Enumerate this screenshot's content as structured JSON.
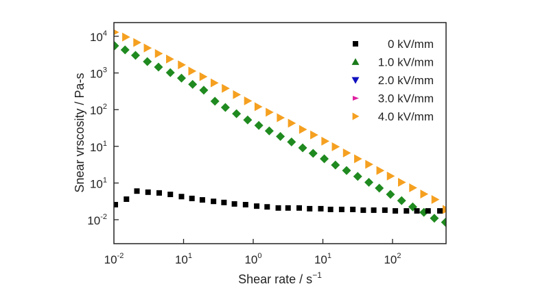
{
  "chart_data": {
    "type": "scatter",
    "title": "",
    "xlabel": "Shear rate / s",
    "xlabel_sup": "−1",
    "ylabel": "Snear vrscosity / Pa-s",
    "x_scale": "log (decades from left axis edge)",
    "y_scale": "log (decades above lowest labeled tick)",
    "xlim": [
      0,
      4.75
    ],
    "ylim": [
      -0.65,
      5.4
    ],
    "x_ticks": [
      {
        "pos": 0,
        "base": "10",
        "exp": "-2"
      },
      {
        "pos": 1,
        "base": "10",
        "exp": "1"
      },
      {
        "pos": 2,
        "base": "10",
        "exp": "0"
      },
      {
        "pos": 3,
        "base": "10",
        "exp": "1"
      },
      {
        "pos": 4,
        "base": "10",
        "exp": "2"
      }
    ],
    "y_ticks": [
      {
        "pos": 0,
        "base": "10",
        "exp": "-2"
      },
      {
        "pos": 1,
        "base": "10",
        "exp": "1"
      },
      {
        "pos": 2,
        "base": "10",
        "exp": "1"
      },
      {
        "pos": 3,
        "base": "10",
        "exp": "2"
      },
      {
        "pos": 4,
        "base": "10",
        "exp": "3"
      },
      {
        "pos": 5,
        "base": "10",
        "exp": "4"
      }
    ],
    "grid": false,
    "legend_position": "top-right",
    "series": [
      {
        "name": "0 kV/mm",
        "marker": "square",
        "color": "#000000",
        "x": [
          0.02,
          0.18,
          0.33,
          0.49,
          0.65,
          0.81,
          0.97,
          1.12,
          1.27,
          1.43,
          1.58,
          1.73,
          1.89,
          2.05,
          2.2,
          2.36,
          2.5,
          2.66,
          2.81,
          2.97,
          3.11,
          3.27,
          3.43,
          3.58,
          3.73,
          3.89,
          4.04,
          4.2,
          4.35,
          4.51,
          4.68
        ],
        "y": [
          0.41,
          0.56,
          0.78,
          0.75,
          0.73,
          0.69,
          0.63,
          0.58,
          0.54,
          0.5,
          0.47,
          0.43,
          0.41,
          0.37,
          0.35,
          0.32,
          0.32,
          0.32,
          0.3,
          0.3,
          0.28,
          0.28,
          0.28,
          0.26,
          0.26,
          0.26,
          0.24,
          0.24,
          0.24,
          0.24,
          0.24
        ]
      },
      {
        "name": "1.0 kV/mm",
        "marker": "triangle-up",
        "color": "#1a7a1a",
        "x": [],
        "y": []
      },
      {
        "name": "2.0 kV/mm",
        "marker": "triangle-down",
        "color": "#1010c0",
        "x": [],
        "y": []
      },
      {
        "name": "3.0 kV/mm",
        "marker": "triangle-right-small",
        "color": "#e020a0",
        "x": [],
        "y": []
      },
      {
        "name": "4.0 kV/mm",
        "marker": "triangle-right",
        "color": "#f5a020",
        "x": [
          0.01,
          0.17,
          0.33,
          0.48,
          0.64,
          0.8,
          0.97,
          1.12,
          1.28,
          1.44,
          1.6,
          1.76,
          1.92,
          2.07,
          2.23,
          2.39,
          2.55,
          2.71,
          2.87,
          3.03,
          3.18,
          3.34,
          3.5,
          3.66,
          3.82,
          3.97,
          4.13,
          4.29,
          4.45,
          4.61,
          4.77
        ],
        "y": [
          5.11,
          4.98,
          4.83,
          4.68,
          4.53,
          4.38,
          4.22,
          4.05,
          3.9,
          3.73,
          3.58,
          3.41,
          3.24,
          3.08,
          2.93,
          2.78,
          2.63,
          2.46,
          2.31,
          2.14,
          1.99,
          1.82,
          1.66,
          1.51,
          1.34,
          1.19,
          1.02,
          0.87,
          0.7,
          0.55,
          0.28
        ]
      },
      {
        "name": "diamond overlay (1.0–3.0 kV/mm data)",
        "marker": "diamond",
        "color": "#1f8a1f",
        "legend": false,
        "x": [
          0.01,
          0.16,
          0.31,
          0.48,
          0.64,
          0.81,
          0.97,
          1.13,
          1.29,
          1.45,
          1.6,
          1.76,
          1.92,
          2.08,
          2.23,
          2.39,
          2.55,
          2.71,
          2.86,
          3.02,
          3.18,
          3.34,
          3.5,
          3.66,
          3.81,
          3.97,
          4.13,
          4.29,
          4.45,
          4.6,
          4.76
        ],
        "y": [
          4.74,
          4.63,
          4.48,
          4.31,
          4.16,
          4.01,
          3.86,
          3.69,
          3.53,
          3.23,
          3.06,
          2.89,
          2.72,
          2.57,
          2.42,
          2.27,
          2.12,
          1.96,
          1.81,
          1.66,
          1.49,
          1.34,
          1.18,
          1.02,
          0.86,
          0.69,
          0.52,
          0.35,
          0.2,
          0.04,
          -0.07
        ]
      }
    ]
  }
}
